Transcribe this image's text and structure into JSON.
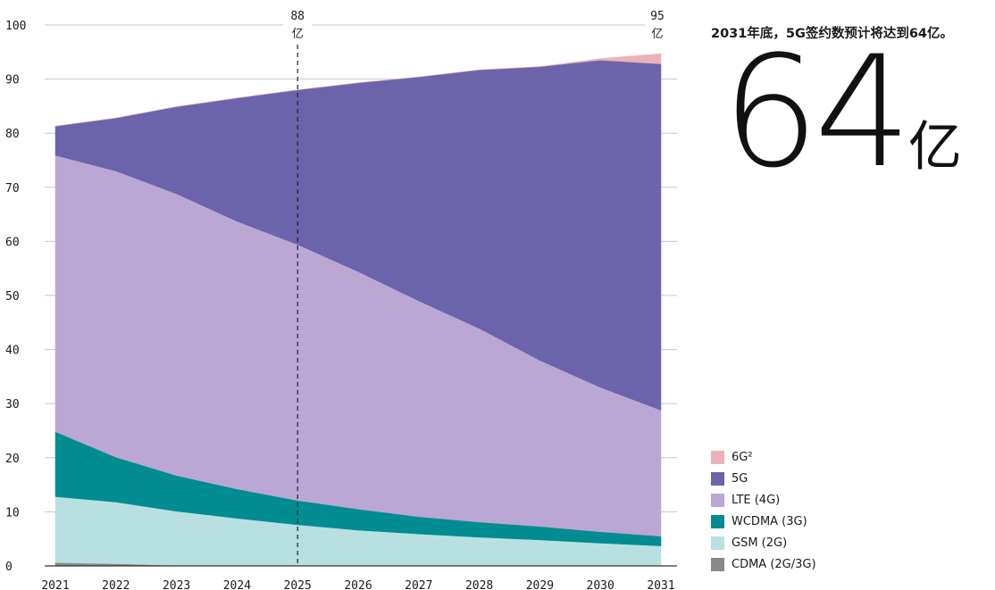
{
  "headline": "2031年底，5G签约数预计将达到64亿。",
  "big_number": "64",
  "big_unit": "亿",
  "annotations": [
    {
      "year": "2025",
      "value": "88",
      "unit": "亿"
    },
    {
      "year": "2031",
      "value": "95",
      "unit": "亿"
    }
  ],
  "legend": [
    {
      "label": "6G²",
      "color": "#e8b4b8"
    },
    {
      "label": "5G",
      "color": "#6b64ab"
    },
    {
      "label": "LTE (4G)",
      "color": "#baa7d4"
    },
    {
      "label": "WCDMA (3G)",
      "color": "#008c91"
    },
    {
      "label": "GSM (2G)",
      "color": "#b9e0e1"
    },
    {
      "label": "CDMA (2G/3G)",
      "color": "#888888"
    }
  ],
  "chart_data": {
    "type": "area",
    "stacked": true,
    "x": [
      "2021",
      "2022",
      "2023",
      "2024",
      "2025",
      "2026",
      "2027",
      "2028",
      "2029",
      "2030",
      "2031"
    ],
    "ylim": [
      0,
      100
    ],
    "yticks": [
      0,
      10,
      20,
      30,
      40,
      50,
      60,
      70,
      80,
      90,
      100
    ],
    "grid": true,
    "legend_position": "bottom-right",
    "reference_line_year": "2025",
    "series": [
      {
        "name": "CDMA (2G/3G)",
        "color": "#888888",
        "values": [
          0.6,
          0.4,
          0.1,
          0,
          0,
          0,
          0,
          0,
          0,
          0,
          0
        ]
      },
      {
        "name": "GSM (2G)",
        "color": "#b9e0e1",
        "values": [
          12.2,
          11.4,
          10.0,
          8.8,
          7.6,
          6.6,
          5.9,
          5.3,
          4.8,
          4.2,
          3.7
        ]
      },
      {
        "name": "WCDMA (3G)",
        "color": "#008c91",
        "values": [
          12.0,
          8.3,
          6.6,
          5.4,
          4.5,
          3.9,
          3.2,
          2.8,
          2.5,
          2.1,
          1.8
        ]
      },
      {
        "name": "LTE (4G)",
        "color": "#baa7d4",
        "values": [
          51.1,
          52.9,
          52.1,
          49.5,
          47.3,
          43.9,
          39.9,
          35.8,
          30.7,
          26.7,
          23.3
        ]
      },
      {
        "name": "5G",
        "color": "#6b64ab",
        "values": [
          5.4,
          9.8,
          16.1,
          22.8,
          28.6,
          34.9,
          41.4,
          47.8,
          54.3,
          60.5,
          64.0
        ]
      },
      {
        "name": "6G²",
        "color": "#e8b4b8",
        "values": [
          0,
          0,
          0,
          0,
          0,
          0,
          0,
          0,
          0,
          0.3,
          1.9
        ]
      }
    ]
  }
}
